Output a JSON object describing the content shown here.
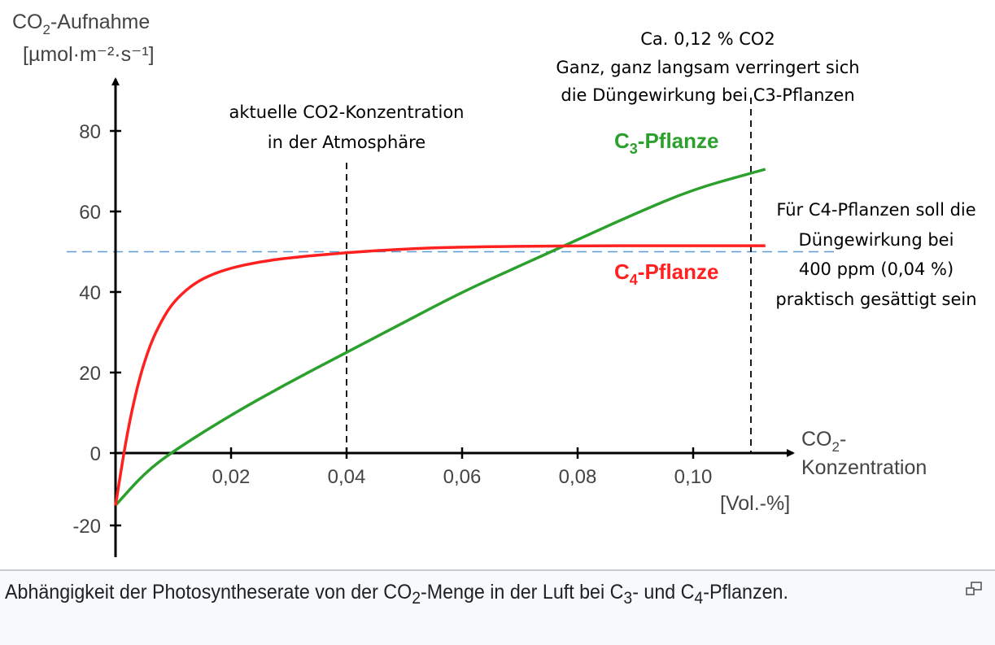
{
  "chart_data": {
    "type": "line",
    "ylabel_line1": "CO",
    "ylabel_sub": "2",
    "ylabel_rest": "-Aufnahme",
    "ylabel_unit": "[µmol·m⁻²·s⁻¹]",
    "xlabel_line1": "CO",
    "xlabel_sub": "2",
    "xlabel_dash": "-",
    "xlabel_line2": "Konzentration",
    "xlabel_unit": "[Vol.-%]",
    "xlim": [
      0,
      0.115
    ],
    "ylim": [
      -20,
      80
    ],
    "x_ticks": [
      {
        "v": 0.02,
        "label": "0,02"
      },
      {
        "v": 0.04,
        "label": "0,04"
      },
      {
        "v": 0.06,
        "label": "0,06"
      },
      {
        "v": 0.08,
        "label": "0,08"
      },
      {
        "v": 0.1,
        "label": "0,10"
      }
    ],
    "y_ticks": [
      {
        "v": 80,
        "label": "80"
      },
      {
        "v": 60,
        "label": "60"
      },
      {
        "v": 40,
        "label": "40"
      },
      {
        "v": 20,
        "label": "20"
      },
      {
        "v": 0,
        "label": "0"
      },
      {
        "v": -20,
        "label": "-20"
      }
    ],
    "series": [
      {
        "name": "C3-Pflanze",
        "label_main": "C",
        "label_sub": "3",
        "label_rest": "-Pflanze",
        "color": "#2ca02c",
        "x": [
          0,
          0.005,
          0.01,
          0.02,
          0.03,
          0.04,
          0.05,
          0.06,
          0.07,
          0.08,
          0.09,
          0.1,
          0.11,
          0.1125
        ],
        "y": [
          -13,
          -5,
          0.5,
          9.5,
          17.5,
          25,
          32.5,
          40,
          46.5,
          53,
          59.5,
          65.5,
          69.5,
          70.5
        ]
      },
      {
        "name": "C4-Pflanze",
        "label_main": "C",
        "label_sub": "4",
        "label_rest": "-Pflanze",
        "color": "#ff2020",
        "x": [
          0,
          0.002,
          0.004,
          0.006,
          0.008,
          0.01,
          0.013,
          0.016,
          0.02,
          0.025,
          0.03,
          0.04,
          0.05,
          0.06,
          0.08,
          0.1,
          0.1125
        ],
        "y": [
          -13,
          5,
          18,
          27,
          33,
          37.5,
          41.5,
          44,
          46,
          47.5,
          48.5,
          49.8,
          50.7,
          51.2,
          51.5,
          51.5,
          51.5
        ]
      }
    ],
    "reference_lines": [
      {
        "type": "horizontal",
        "y": 50,
        "color": "#5b9bd5"
      },
      {
        "type": "vertical",
        "x": 0.04,
        "color": "#000000"
      },
      {
        "type": "vertical",
        "x": 0.11,
        "color": "#000000"
      }
    ],
    "annotations": {
      "current": [
        "aktuelle CO2-Konzentration",
        "in der Atmosphäre"
      ],
      "c3": [
        "Ca. 0,12 % CO2",
        "Ganz, ganz langsam verringert sich",
        "die Düngewirkung bei C3-Pflanzen"
      ],
      "c4": [
        "Für C4-Pflanzen soll die",
        "Düngewirkung bei",
        "400 ppm (0,04 %)",
        "praktisch gesättigt sein"
      ]
    }
  },
  "caption": {
    "part1": "Abhängigkeit der Photosyntheserate von der CO",
    "sub1": "2",
    "part2": "-Menge in der Luft bei C",
    "sub2": "3",
    "part3": "- und C",
    "sub3": "4",
    "part4": "-Pflanzen."
  }
}
